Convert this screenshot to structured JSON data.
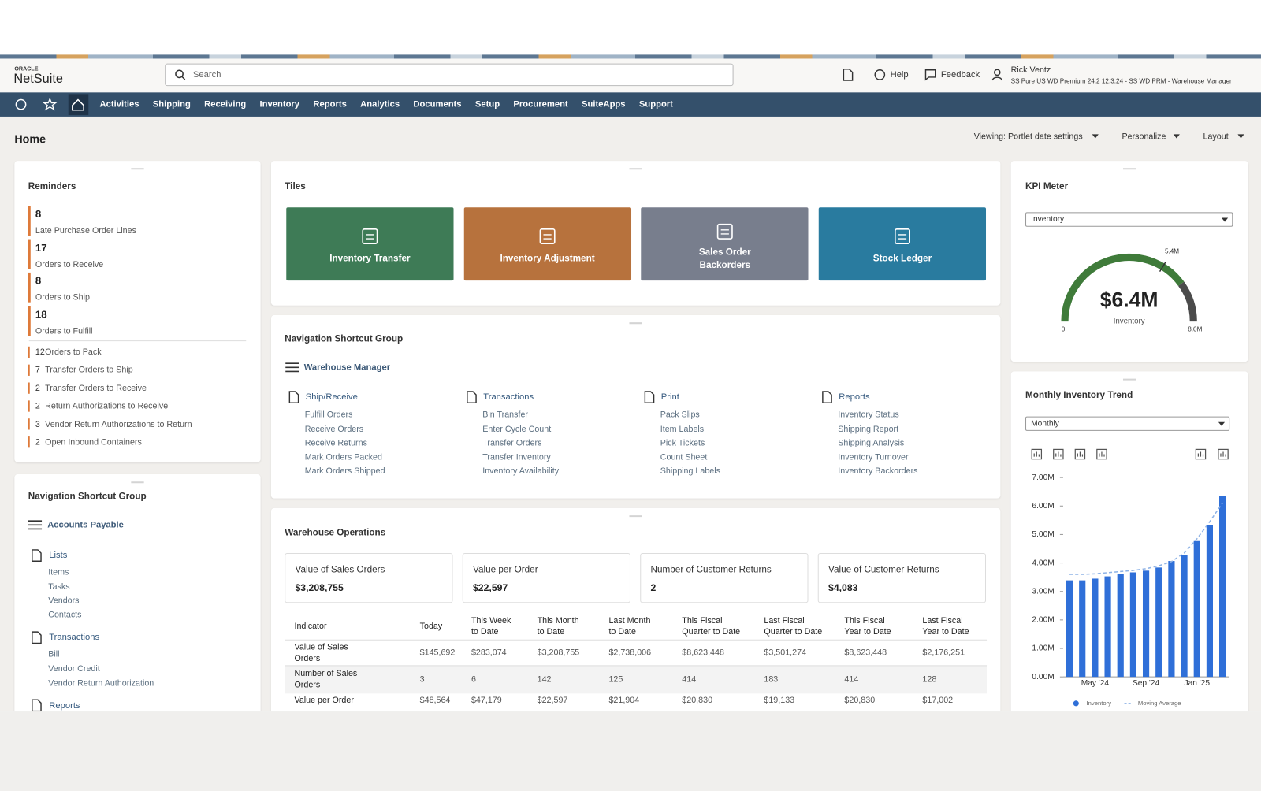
{
  "header": {
    "logo_small": "ORACLE",
    "logo": "NetSuite",
    "search": "Search",
    "help": "Help",
    "feedback": "Feedback",
    "user": "Rick Ventz",
    "role": "SS Pure US WD Premium 24.2 12.3.24 - SS WD PRM - Warehouse Manager"
  },
  "nav": [
    "Activities",
    "Shipping",
    "Receiving",
    "Inventory",
    "Reports",
    "Analytics",
    "Documents",
    "Setup",
    "Procurement",
    "SuiteApps",
    "Support"
  ],
  "page": {
    "title": "Home",
    "viewing": "Viewing: Portlet date settings",
    "personalize": "Personalize",
    "layout": "Layout"
  },
  "reminders": {
    "title": "Reminders",
    "highlights": [
      {
        "count": 8,
        "label": "Late Purchase Order Lines"
      },
      {
        "count": 17,
        "label": "Orders to Receive"
      },
      {
        "count": 8,
        "label": "Orders to Ship"
      },
      {
        "count": 18,
        "label": "Orders to Fulfill"
      }
    ],
    "items": [
      {
        "count": 12,
        "label": "Orders to Pack"
      },
      {
        "count": 7,
        "label": "Transfer Orders to Ship"
      },
      {
        "count": 2,
        "label": "Transfer Orders to Receive"
      },
      {
        "count": 2,
        "label": "Return Authorizations to Receive"
      },
      {
        "count": 3,
        "label": "Vendor Return Authorizations to Return"
      },
      {
        "count": 2,
        "label": "Open Inbound Containers"
      }
    ]
  },
  "shortcuts_left": {
    "title": "Navigation Shortcut Group",
    "group": "Accounts Payable",
    "sections": [
      {
        "title": "Lists",
        "links": [
          "Items",
          "Tasks",
          "Vendors",
          "Contacts"
        ]
      },
      {
        "title": "Transactions",
        "links": [
          "Bill",
          "Vendor Credit",
          "Vendor Return Authorization"
        ]
      },
      {
        "title": "Reports"
      }
    ]
  },
  "tiles": {
    "title": "Tiles",
    "items": [
      {
        "lines": [
          "Inventory Transfer"
        ],
        "color": "#3e7b56"
      },
      {
        "lines": [
          "Inventory Adjustment"
        ],
        "color": "#b7723d"
      },
      {
        "lines": [
          "Sales Order",
          "Backorders"
        ],
        "color": "#787e8d"
      },
      {
        "lines": [
          "Stock Ledger"
        ],
        "color": "#297b9f"
      }
    ]
  },
  "shortcuts_center": {
    "title": "Navigation Shortcut Group",
    "group": "Warehouse Manager",
    "sections": [
      {
        "title": "Ship/Receive",
        "links": [
          "Fulfill Orders",
          "Receive Orders",
          "Receive Returns",
          "Mark Orders Packed",
          "Mark Orders Shipped"
        ]
      },
      {
        "title": "Transactions",
        "links": [
          "Bin Transfer",
          "Enter Cycle Count",
          "Transfer Orders",
          "Transfer Inventory",
          "Inventory Availability"
        ]
      },
      {
        "title": "Print",
        "links": [
          "Pack Slips",
          "Item Labels",
          "Pick Tickets",
          "Count Sheet",
          "Shipping Labels"
        ]
      },
      {
        "title": "Reports",
        "links": [
          "Inventory Status",
          "Shipping Report",
          "Shipping Analysis",
          "Inventory Turnover",
          "Inventory Backorders"
        ]
      }
    ]
  },
  "warehouse": {
    "title": "Warehouse Operations",
    "kpis": [
      {
        "label": "Value of Sales Orders",
        "value": "$3,208,755"
      },
      {
        "label": "Value per Order",
        "value": "$22,597"
      },
      {
        "label": "Number of Customer Returns",
        "value": 2
      },
      {
        "label": "Value of Customer Returns",
        "value": "$4,083"
      }
    ],
    "table": {
      "headers": [
        [
          "Indicator"
        ],
        [
          "Today"
        ],
        [
          "This Week",
          "to Date"
        ],
        [
          "This Month",
          "to Date"
        ],
        [
          "Last Month",
          "to Date"
        ],
        [
          "This Fiscal",
          "Quarter to Date"
        ],
        [
          "Last Fiscal",
          "Quarter to Date"
        ],
        [
          "This Fiscal",
          "Year to Date"
        ],
        [
          "Last Fiscal",
          "Year to Date"
        ]
      ],
      "rows": [
        {
          "indicator": [
            "Value of Sales",
            "Orders"
          ],
          "values": [
            "$145,692",
            "$283,074",
            "$3,208,755",
            "$2,738,006",
            "$8,623,448",
            "$3,501,274",
            "$8,623,448",
            "$2,176,251"
          ]
        },
        {
          "indicator": [
            "Number of Sales",
            "Orders"
          ],
          "values": [
            3,
            6,
            142,
            125,
            414,
            183,
            414,
            128
          ]
        },
        {
          "indicator": [
            "Value per Order"
          ],
          "values": [
            "$48,564",
            "$47,179",
            "$22,597",
            "$21,904",
            "$20,830",
            "$19,133",
            "$20,830",
            "$17,002"
          ]
        }
      ]
    }
  },
  "chart_data": [
    {
      "type": "gauge",
      "title": "KPI Meter",
      "dropdown": "Inventory",
      "value": 6.4,
      "value_label": "$6.4M",
      "caption": "Inventory",
      "range": [
        0,
        8
      ],
      "ticks": [
        0,
        {
          "value": 8,
          "label": "8.0M"
        }
      ],
      "target": {
        "value": 5.4,
        "label": "5.4M"
      },
      "color": "#3f7b3a",
      "track_color": "#4b4b4b"
    },
    {
      "type": "bar",
      "title": "Monthly Inventory Trend",
      "dropdown": "Monthly",
      "categories": [
        null,
        null,
        "May '24",
        null,
        null,
        null,
        "Sep '24",
        null,
        null,
        null,
        "Jan '25",
        null,
        null
      ],
      "series": [
        {
          "name": "Inventory",
          "color": "#2f6fd8",
          "values": [
            3.39,
            3.39,
            3.45,
            3.53,
            3.62,
            3.67,
            3.73,
            3.84,
            4.07,
            4.29,
            4.77,
            5.34,
            6.36
          ]
        },
        {
          "name": "Moving Average",
          "type": "line",
          "color": "#8fb3e6",
          "values": [
            3.6,
            3.6,
            3.62,
            3.66,
            3.7,
            3.74,
            3.8,
            3.9,
            4.05,
            4.35,
            4.85,
            5.45,
            6.1
          ]
        }
      ],
      "ylim": [
        0,
        7
      ],
      "yticks": [
        {
          "value": 0,
          "label": "0.00M"
        },
        {
          "value": 1,
          "label": "1.00M"
        },
        {
          "value": 2,
          "label": "2.00M"
        },
        {
          "value": 3,
          "label": "3.00M"
        },
        {
          "value": 4,
          "label": "4.00M"
        },
        {
          "value": 5,
          "label": "5.00M"
        },
        {
          "value": 6,
          "label": "6.00M"
        },
        {
          "value": 7,
          "label": "7.00M"
        }
      ],
      "legend": "bottom"
    }
  ]
}
